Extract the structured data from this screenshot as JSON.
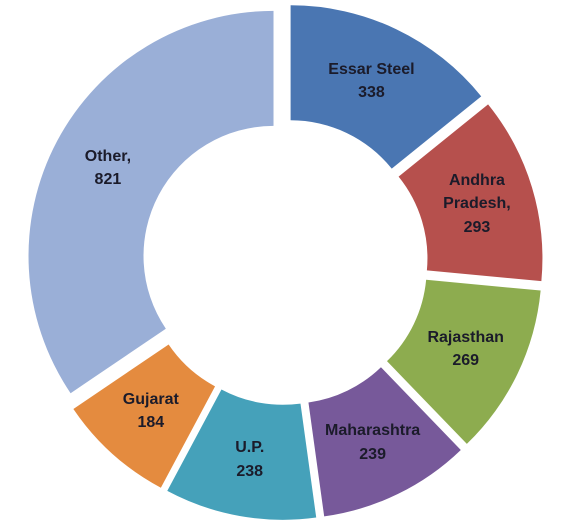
{
  "chart_data": {
    "type": "donut",
    "categories": [
      "Essar Steel",
      "Andhra Pradesh,",
      "Rajasthan",
      "Maharashtra",
      "U.P.",
      "Gujarat",
      "Other,"
    ],
    "values": [
      338,
      293,
      269,
      239,
      238,
      184,
      821
    ],
    "colors": [
      "#4a76b2",
      "#b6504d",
      "#8dac4f",
      "#77599a",
      "#45a1ba",
      "#e48b3f",
      "#9aafd7"
    ]
  }
}
